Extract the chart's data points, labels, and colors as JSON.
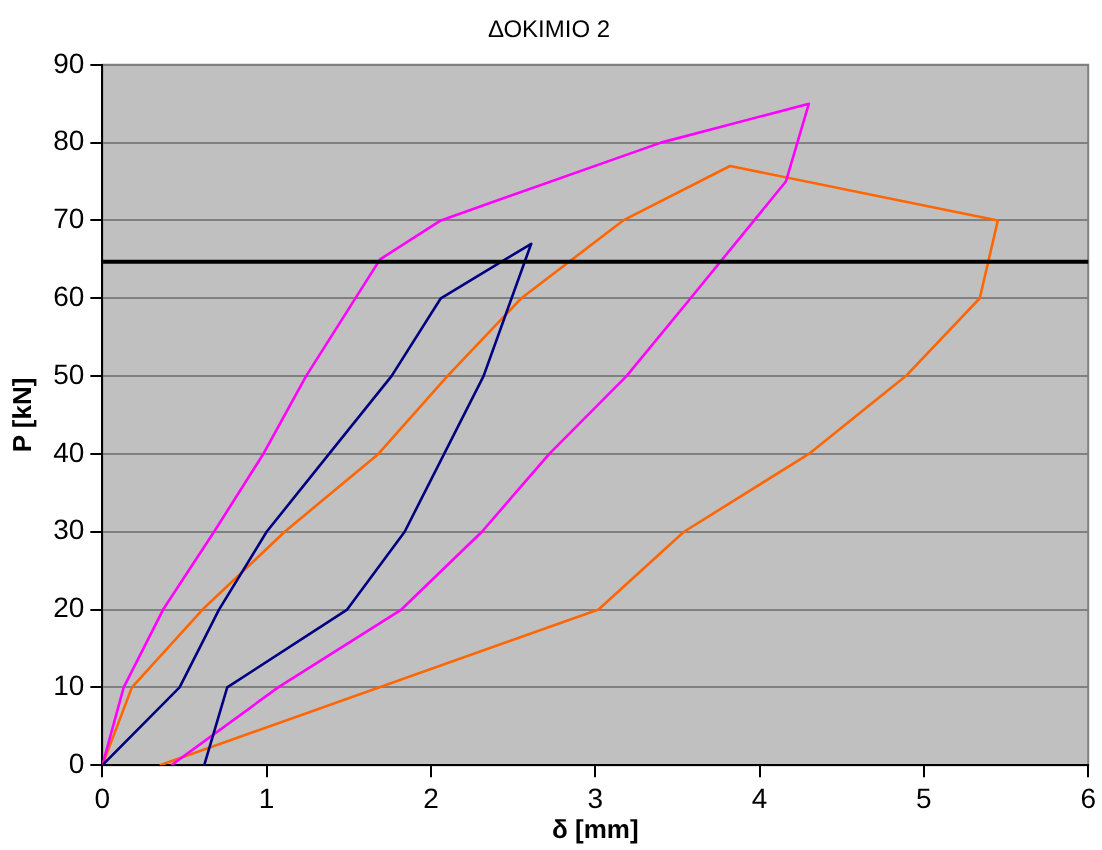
{
  "chart_data": {
    "type": "line",
    "title": "ΔΟΚΙΜΙΟ 2",
    "xlabel": "δ [mm]",
    "ylabel": "P [kN]",
    "series": [
      {
        "color": "#000080",
        "x": [
          0,
          0.47,
          0.71,
          1.0,
          1.38,
          1.76,
          2.06,
          2.61,
          2.32,
          1.84,
          1.49,
          0.76,
          0.62
        ],
        "values": [
          0,
          10,
          20,
          30,
          40,
          50,
          60,
          67,
          50,
          30,
          20,
          10,
          0
        ]
      },
      {
        "color": "#ff00ff",
        "x": [
          0,
          0.13,
          0.37,
          0.68,
          0.98,
          1.24,
          1.69,
          2.06,
          3.4,
          4.3,
          4.16,
          3.58,
          3.19,
          2.72,
          2.31,
          1.82,
          1.07,
          0.42
        ],
        "values": [
          0,
          10,
          20,
          30,
          40,
          50,
          65,
          70,
          80,
          85,
          75,
          60,
          50,
          40,
          30,
          20,
          10,
          0
        ]
      },
      {
        "color": "#ff6600",
        "x": [
          0,
          0.18,
          0.61,
          1.11,
          1.68,
          2.1,
          2.55,
          3.17,
          3.82,
          5.45,
          5.34,
          4.89,
          4.3,
          3.54,
          3.02,
          0.35
        ],
        "values": [
          0,
          10,
          20,
          30,
          40,
          50,
          60,
          70,
          77,
          70,
          60,
          50,
          40,
          30,
          20,
          0
        ]
      }
    ],
    "xlim": [
      0,
      6
    ],
    "xticks": [
      0,
      1,
      2,
      3,
      4,
      5,
      6
    ],
    "ylim": [
      0,
      90
    ],
    "yticks": [
      0,
      10,
      20,
      30,
      40,
      50,
      60,
      70,
      80,
      90
    ],
    "grid": "y",
    "legend": false,
    "marker": "none",
    "line_style": "solid",
    "ref_lines": [
      {
        "axis": "y",
        "value": 64.7,
        "color": "#000000"
      }
    ]
  }
}
